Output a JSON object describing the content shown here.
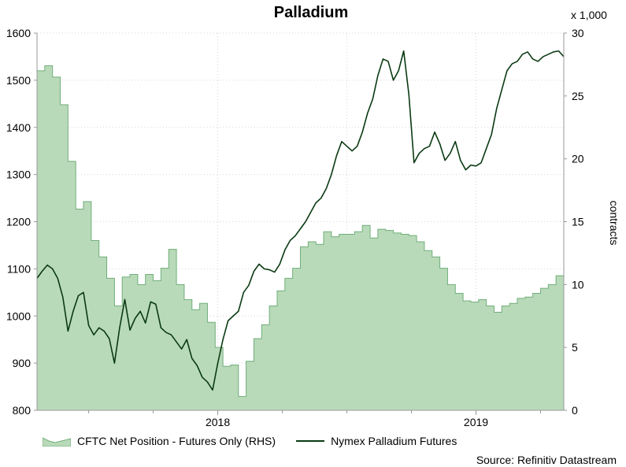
{
  "chart_data": {
    "type": "line",
    "title": "Palladium",
    "y_left": {
      "lim": [
        800,
        1600
      ],
      "ticks": [
        800,
        900,
        1000,
        1100,
        1200,
        1300,
        1400,
        1500,
        1600
      ]
    },
    "y_right": {
      "lim": [
        0,
        30
      ],
      "ticks": [
        0,
        5,
        10,
        15,
        20,
        25,
        30
      ],
      "label": "contracts",
      "multiplier": "x 1,000"
    },
    "x_ticks": [
      "2018",
      "2019"
    ],
    "series": [
      {
        "name": "CFTC Net Position - Futures Only (RHS)",
        "axis": "right",
        "type": "area",
        "color": "#b9dab9",
        "x": [
          2017.3,
          2017.33,
          2017.36,
          2017.39,
          2017.42,
          2017.45,
          2017.48,
          2017.51,
          2017.54,
          2017.57,
          2017.6,
          2017.63,
          2017.66,
          2017.69,
          2017.72,
          2017.75,
          2017.78,
          2017.81,
          2017.84,
          2017.87,
          2017.9,
          2017.93,
          2017.96,
          2017.99,
          2018.02,
          2018.05,
          2018.08,
          2018.11,
          2018.14,
          2018.17,
          2018.2,
          2018.23,
          2018.26,
          2018.29,
          2018.32,
          2018.35,
          2018.38,
          2018.41,
          2018.44,
          2018.47,
          2018.5,
          2018.53,
          2018.56,
          2018.59,
          2018.62,
          2018.65,
          2018.68,
          2018.71,
          2018.74,
          2018.77,
          2018.8,
          2018.83,
          2018.86,
          2018.89,
          2018.92,
          2018.95,
          2018.98,
          2019.01,
          2019.04,
          2019.07,
          2019.1,
          2019.13,
          2019.16,
          2019.19,
          2019.22,
          2019.25,
          2019.28,
          2019.31,
          2019.34
        ],
        "values": [
          27.0,
          27.4,
          26.5,
          24.3,
          19.8,
          16.0,
          16.6,
          13.5,
          12.2,
          10.5,
          8.3,
          10.6,
          10.8,
          10.0,
          10.8,
          10.3,
          11.3,
          12.8,
          10.0,
          8.8,
          8.0,
          8.5,
          7.0,
          5.0,
          3.5,
          3.6,
          1.1,
          3.9,
          5.7,
          6.8,
          8.3,
          9.5,
          10.5,
          11.3,
          13.0,
          13.4,
          13.2,
          14.2,
          13.8,
          14.0,
          14.0,
          14.2,
          14.7,
          13.7,
          14.4,
          14.3,
          14.1,
          14.0,
          13.9,
          13.4,
          12.7,
          12.2,
          11.3,
          10.0,
          9.3,
          8.7,
          8.6,
          8.8,
          8.3,
          7.8,
          8.3,
          8.5,
          8.9,
          9.0,
          9.3,
          9.7,
          10.0,
          10.7,
          10.7
        ]
      },
      {
        "name": "Nymex Palladium Futures",
        "axis": "left",
        "type": "line",
        "color": "#0a3a12",
        "x": [
          2017.3,
          2017.32,
          2017.34,
          2017.36,
          2017.38,
          2017.4,
          2017.42,
          2017.44,
          2017.46,
          2017.48,
          2017.5,
          2017.52,
          2017.54,
          2017.56,
          2017.58,
          2017.6,
          2017.62,
          2017.64,
          2017.66,
          2017.68,
          2017.7,
          2017.72,
          2017.74,
          2017.76,
          2017.78,
          2017.8,
          2017.82,
          2017.84,
          2017.86,
          2017.88,
          2017.9,
          2017.92,
          2017.94,
          2017.96,
          2017.98,
          2018.0,
          2018.02,
          2018.04,
          2018.06,
          2018.08,
          2018.1,
          2018.12,
          2018.14,
          2018.16,
          2018.18,
          2018.2,
          2018.22,
          2018.24,
          2018.26,
          2018.28,
          2018.3,
          2018.32,
          2018.34,
          2018.36,
          2018.38,
          2018.4,
          2018.42,
          2018.44,
          2018.46,
          2018.48,
          2018.5,
          2018.52,
          2018.54,
          2018.56,
          2018.58,
          2018.6,
          2018.62,
          2018.64,
          2018.66,
          2018.68,
          2018.7,
          2018.72,
          2018.74,
          2018.76,
          2018.78,
          2018.8,
          2018.82,
          2018.84,
          2018.86,
          2018.88,
          2018.9,
          2018.92,
          2018.94,
          2018.96,
          2018.98,
          2019.0,
          2019.02,
          2019.04,
          2019.06,
          2019.08,
          2019.1,
          2019.12,
          2019.14,
          2019.16,
          2019.18,
          2019.2,
          2019.22,
          2019.24,
          2019.26,
          2019.28,
          2019.3,
          2019.32,
          2019.34
        ],
        "values": [
          1080,
          1095,
          1108,
          1100,
          1080,
          1040,
          968,
          1010,
          1043,
          1050,
          980,
          960,
          975,
          968,
          952,
          900,
          975,
          1035,
          970,
          995,
          1010,
          985,
          1030,
          1025,
          975,
          965,
          960,
          945,
          930,
          950,
          910,
          895,
          870,
          860,
          843,
          900,
          950,
          990,
          1000,
          1010,
          1050,
          1065,
          1095,
          1110,
          1100,
          1098,
          1093,
          1110,
          1140,
          1160,
          1170,
          1185,
          1200,
          1220,
          1240,
          1250,
          1270,
          1300,
          1340,
          1370,
          1360,
          1350,
          1360,
          1390,
          1430,
          1460,
          1510,
          1545,
          1540,
          1500,
          1520,
          1562,
          1470,
          1325,
          1345,
          1355,
          1360,
          1390,
          1365,
          1330,
          1345,
          1370,
          1330,
          1310,
          1320,
          1318,
          1325,
          1355,
          1385,
          1440,
          1480,
          1520,
          1535,
          1540,
          1555,
          1560,
          1545,
          1540,
          1550,
          1555,
          1560,
          1562,
          1550
        ]
      }
    ]
  },
  "legend": {
    "area_label": "CFTC Net Position - Futures Only (RHS)",
    "line_label": "Nymex Palladium Futures"
  },
  "source": "Source: Refinitiv Datastream"
}
